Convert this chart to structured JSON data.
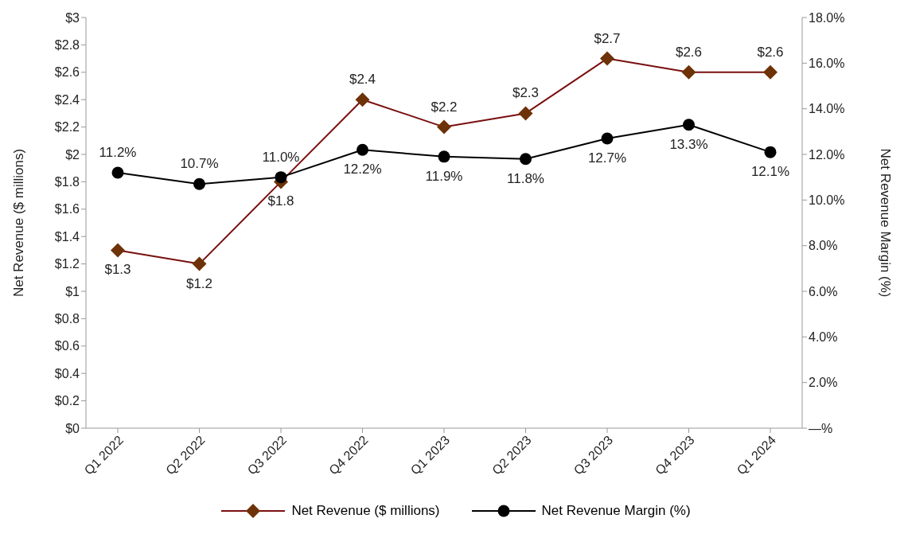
{
  "chart_data": {
    "type": "line",
    "categories": [
      "Q1 2022",
      "Q2 2022",
      "Q3 2022",
      "Q4 2022",
      "Q1 2023",
      "Q2 2023",
      "Q3 2023",
      "Q4 2023",
      "Q1 2024"
    ],
    "ylabel": "Net Revenue ($ millions)",
    "y2label": "Net Revenue Margin (%)",
    "ylim": [
      0,
      3
    ],
    "yticks": [
      {
        "value": 0,
        "label": "$0"
      },
      {
        "value": 0.2,
        "label": "$0.2"
      },
      {
        "value": 0.4,
        "label": "$0.4"
      },
      {
        "value": 0.6,
        "label": "$0.6"
      },
      {
        "value": 0.8,
        "label": "$0.8"
      },
      {
        "value": 1,
        "label": "$1"
      },
      {
        "value": 1.2,
        "label": "$1.2"
      },
      {
        "value": 1.4,
        "label": "$1.4"
      },
      {
        "value": 1.6,
        "label": "$1.6"
      },
      {
        "value": 1.8,
        "label": "$1.8"
      },
      {
        "value": 2,
        "label": "$2"
      },
      {
        "value": 2.2,
        "label": "$2.2"
      },
      {
        "value": 2.4,
        "label": "$2.4"
      },
      {
        "value": 2.6,
        "label": "$2.6"
      },
      {
        "value": 2.8,
        "label": "$2.8"
      },
      {
        "value": 3,
        "label": "$3"
      }
    ],
    "y2lim": [
      0,
      18
    ],
    "y2ticks": [
      {
        "value": 0,
        "label": "—%"
      },
      {
        "value": 2,
        "label": "2.0%"
      },
      {
        "value": 4,
        "label": "4.0%"
      },
      {
        "value": 6,
        "label": "6.0%"
      },
      {
        "value": 8,
        "label": "8.0%"
      },
      {
        "value": 10,
        "label": "10.0%"
      },
      {
        "value": 12,
        "label": "12.0%"
      },
      {
        "value": 14,
        "label": "14.0%"
      },
      {
        "value": 16,
        "label": "16.0%"
      },
      {
        "value": 18,
        "label": "18.0%"
      }
    ],
    "series": [
      {
        "name": "Net Revenue ($ millions)",
        "color": "#6e3208",
        "marker": "diamond",
        "values": [
          1.3,
          1.2,
          1.8,
          2.4,
          2.2,
          2.3,
          2.7,
          2.6,
          2.6
        ],
        "value_labels": [
          "$1.3",
          "$1.2",
          "$1.8",
          "$2.4",
          "$2.2",
          "$2.3",
          "$2.7",
          "$2.6",
          "$2.6"
        ]
      },
      {
        "name": "Net Revenue Margin (%)",
        "color": "#000000",
        "marker": "circle",
        "axis": "y2",
        "values": [
          11.2,
          10.7,
          11.0,
          12.2,
          11.9,
          11.8,
          12.7,
          13.3,
          12.1
        ],
        "value_labels": [
          "11.2%",
          "10.7%",
          "11.0%",
          "12.2%",
          "11.9%",
          "11.8%",
          "12.7%",
          "13.3%",
          "12.1%"
        ]
      }
    ],
    "legend": "bottom",
    "grid": false
  }
}
